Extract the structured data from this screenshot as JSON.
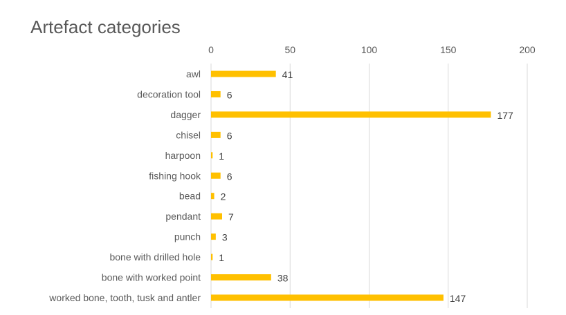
{
  "chart_data": {
    "type": "bar",
    "orientation": "horizontal",
    "title": "Artefact categories",
    "xlabel": "",
    "ylabel": "",
    "xlim": [
      0,
      200
    ],
    "xticks": [
      0,
      50,
      100,
      150,
      200
    ],
    "x_axis_position": "top",
    "grid": true,
    "legend": "none",
    "bar_color": "#FFC000",
    "categories": [
      "awl",
      "decoration tool",
      "dagger",
      "chisel",
      "harpoon",
      "fishing hook",
      "bead",
      "pendant",
      "punch",
      "bone with drilled hole",
      "bone with worked point",
      "worked bone, tooth, tusk and antler"
    ],
    "values": [
      41,
      6,
      177,
      6,
      1,
      6,
      2,
      7,
      3,
      1,
      38,
      147
    ]
  }
}
